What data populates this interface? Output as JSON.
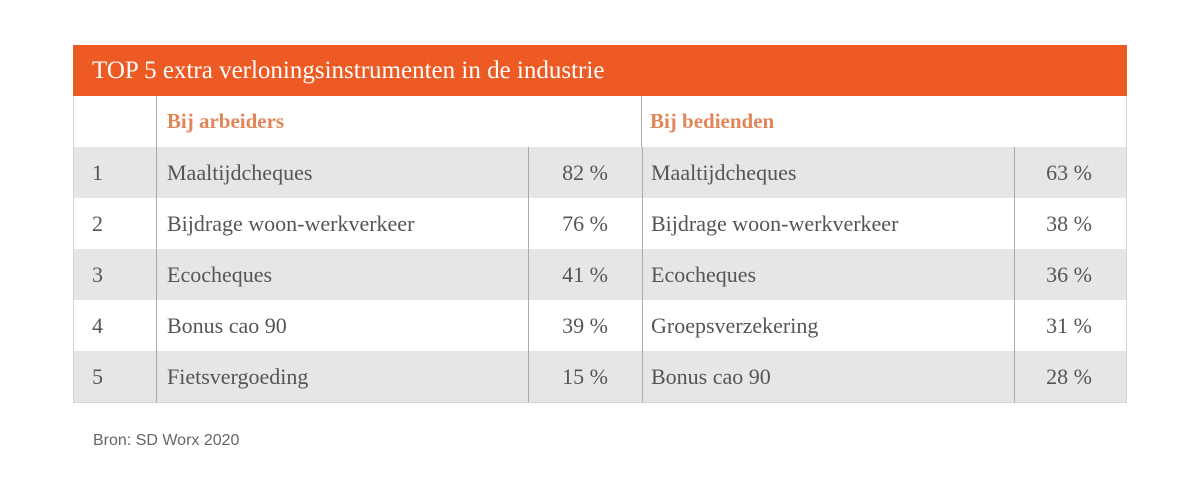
{
  "chart_data": {
    "type": "table",
    "title": "TOP 5 extra verloningsinstrumenten in de industrie",
    "groups": [
      "Bij arbeiders",
      "Bij bedienden"
    ],
    "rows": [
      {
        "rank": "1",
        "arbeiders_item": "Maaltijdcheques",
        "arbeiders_pct": "82 %",
        "bedienden_item": "Maaltijdcheques",
        "bedienden_pct": "63 %"
      },
      {
        "rank": "2",
        "arbeiders_item": "Bijdrage woon-werkverkeer",
        "arbeiders_pct": "76 %",
        "bedienden_item": "Bijdrage woon-werkverkeer",
        "bedienden_pct": "38 %"
      },
      {
        "rank": "3",
        "arbeiders_item": "Ecocheques",
        "arbeiders_pct": "41 %",
        "bedienden_item": "Ecocheques",
        "bedienden_pct": "36 %"
      },
      {
        "rank": "4",
        "arbeiders_item": "Bonus cao 90",
        "arbeiders_pct": "39 %",
        "bedienden_item": "Groepsverzekering",
        "bedienden_pct": "31 %"
      },
      {
        "rank": "5",
        "arbeiders_item": "Fietsvergoeding",
        "arbeiders_pct": "15 %",
        "bedienden_item": "Bonus cao 90",
        "bedienden_pct": "28 %"
      }
    ],
    "source": "Bron: SD Worx 2020"
  },
  "colors": {
    "header": "#ee5a24",
    "subheader_text": "#e0875a",
    "stripe": "#e6e6e7"
  }
}
